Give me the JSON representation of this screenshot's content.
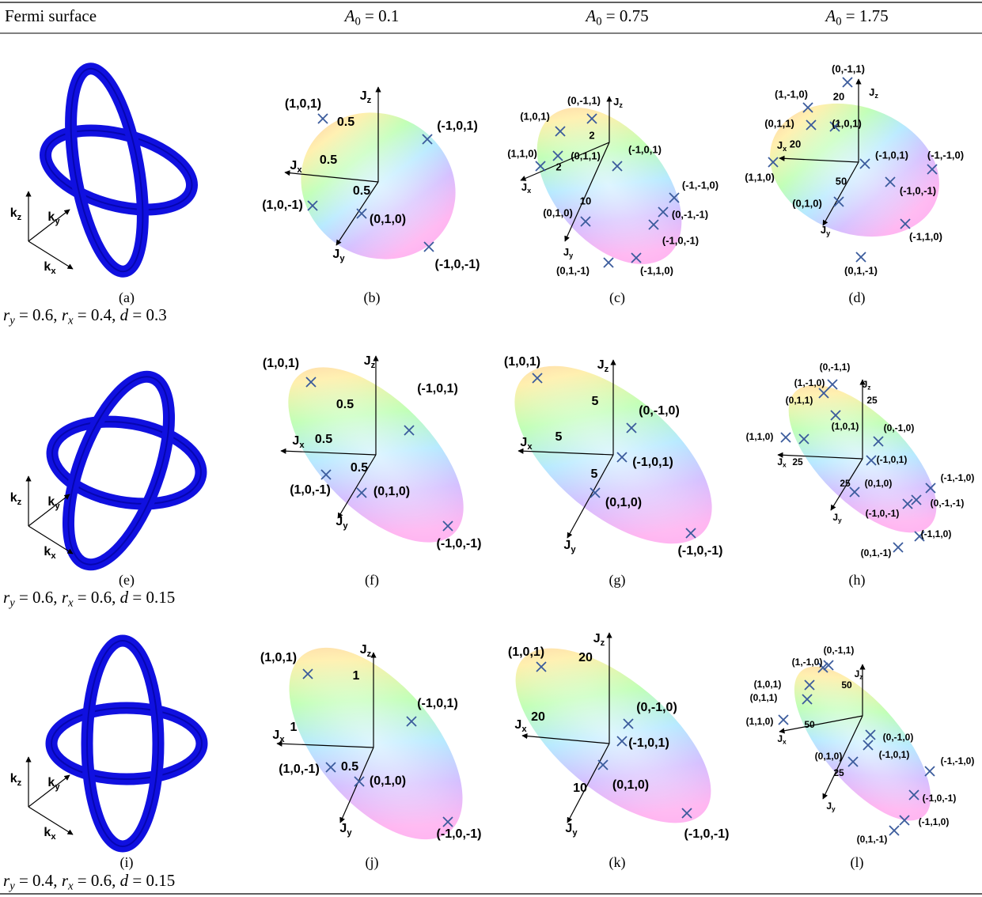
{
  "header": [
    [
      {
        "text": "Fermi surface"
      }
    ],
    [
      {
        "text": "A",
        "italic": true
      },
      {
        "text": "0",
        "sub": true
      },
      {
        "text": " = 0.1"
      }
    ],
    [
      {
        "text": "A",
        "italic": true
      },
      {
        "text": "0",
        "sub": true
      },
      {
        "text": " = 0.75"
      }
    ],
    [
      {
        "text": "A",
        "italic": true
      },
      {
        "text": "0",
        "sub": true
      },
      {
        "text": " = 1.75"
      }
    ]
  ],
  "rows": [
    {
      "params": [
        {
          "text": "r",
          "italic": true
        },
        {
          "text": "y",
          "sub": true,
          "italic": true
        },
        {
          "text": " = 0.6,  "
        },
        {
          "text": "r",
          "italic": true
        },
        {
          "text": "x",
          "sub": true,
          "italic": true
        },
        {
          "text": " = 0.4,  "
        },
        {
          "text": "d",
          "italic": true
        },
        {
          "text": " = 0.3"
        }
      ],
      "panels": [
        {
          "caption": "(a)",
          "axes": [
            [
              {
                "text": "k"
              },
              {
                "text": "z",
                "sub": true
              }
            ],
            [
              {
                "text": "k"
              },
              {
                "text": "y",
                "sub": true
              }
            ],
            [
              {
                "text": "k"
              },
              {
                "text": "x",
                "sub": true
              }
            ]
          ]
        },
        {
          "caption": "(b)",
          "axes": [
            [
              {
                "text": "J"
              },
              {
                "text": "z",
                "sub": true
              }
            ],
            [
              {
                "text": "J"
              },
              {
                "text": "x",
                "sub": true
              }
            ],
            [
              {
                "text": "J"
              },
              {
                "text": "y",
                "sub": true
              }
            ]
          ],
          "ticks": [
            "0.5",
            "0.5",
            "0.5"
          ],
          "points": [
            "(1,0,1)",
            "(-1,0,1)",
            "(1,0,-1)",
            "(0,1,0)",
            "(-1,0,-1)"
          ]
        },
        {
          "caption": "(c)",
          "axes": [
            [
              {
                "text": "J"
              },
              {
                "text": "z",
                "sub": true
              }
            ],
            [
              {
                "text": "J"
              },
              {
                "text": "x",
                "sub": true
              }
            ],
            [
              {
                "text": "J"
              },
              {
                "text": "y",
                "sub": true
              }
            ]
          ],
          "ticks": [
            "2",
            "2",
            "10"
          ],
          "points": [
            "(0,-1,1)",
            "(1,0,1)",
            "(-1,0,1)",
            "(1,1,0)",
            "(0,1,1)",
            "(-1,-1,0)",
            "(0,1,0)",
            "(0,-1,-1)",
            "(-1,0,-1)",
            "(0,1,-1)",
            "(-1,1,0)"
          ]
        },
        {
          "caption": "(d)",
          "axes": [
            [
              {
                "text": "J"
              },
              {
                "text": "z",
                "sub": true
              }
            ],
            [
              {
                "text": "J"
              },
              {
                "text": "x",
                "sub": true
              }
            ],
            [
              {
                "text": "J"
              },
              {
                "text": "y",
                "sub": true
              }
            ]
          ],
          "ticks": [
            "20",
            "20",
            "50"
          ],
          "points": [
            "(0,-1,1)",
            "(1,-1,0)",
            "(0,1,1)",
            "(1,0,1)",
            "(-1,0,1)",
            "(-1,-1,0)",
            "(1,1,0)",
            "(-1,0,-1)",
            "(0,1,0)",
            "(-1,1,0)",
            "(0,1,-1)"
          ]
        }
      ]
    },
    {
      "params": [
        {
          "text": "r",
          "italic": true
        },
        {
          "text": "y",
          "sub": true,
          "italic": true
        },
        {
          "text": " = 0.6,  "
        },
        {
          "text": "r",
          "italic": true
        },
        {
          "text": "x",
          "sub": true,
          "italic": true
        },
        {
          "text": " = 0.6,  "
        },
        {
          "text": "d",
          "italic": true
        },
        {
          "text": " = 0.15"
        }
      ],
      "panels": [
        {
          "caption": "(e)",
          "axes": [
            [
              {
                "text": "k"
              },
              {
                "text": "z",
                "sub": true
              }
            ],
            [
              {
                "text": "k"
              },
              {
                "text": "y",
                "sub": true
              }
            ],
            [
              {
                "text": "k"
              },
              {
                "text": "x",
                "sub": true
              }
            ]
          ]
        },
        {
          "caption": "(f)",
          "axes": [
            [
              {
                "text": "J"
              },
              {
                "text": "z",
                "sub": true
              }
            ],
            [
              {
                "text": "J"
              },
              {
                "text": "x",
                "sub": true
              }
            ],
            [
              {
                "text": "J"
              },
              {
                "text": "y",
                "sub": true
              }
            ]
          ],
          "ticks": [
            "0.5",
            "0.5",
            "0.5"
          ],
          "points": [
            "(1,0,1)",
            "(-1,0,1)",
            "(1,0,-1)",
            "(0,1,0)",
            "(-1,0,-1)"
          ]
        },
        {
          "caption": "(g)",
          "axes": [
            [
              {
                "text": "J"
              },
              {
                "text": "z",
                "sub": true
              }
            ],
            [
              {
                "text": "J"
              },
              {
                "text": "x",
                "sub": true
              }
            ],
            [
              {
                "text": "J"
              },
              {
                "text": "y",
                "sub": true
              }
            ]
          ],
          "ticks": [
            "5",
            "5",
            "5"
          ],
          "points": [
            "(1,0,1)",
            "(0,-1,0)",
            "(-1,0,1)",
            "(0,1,0)",
            "(-1,0,-1)"
          ]
        },
        {
          "caption": "(h)",
          "axes": [
            [
              {
                "text": "J"
              },
              {
                "text": "z",
                "sub": true
              }
            ],
            [
              {
                "text": "J"
              },
              {
                "text": "x",
                "sub": true
              }
            ],
            [
              {
                "text": "J"
              },
              {
                "text": "y",
                "sub": true
              }
            ]
          ],
          "ticks": [
            "25",
            "25",
            "25"
          ],
          "points": [
            "(0,-1,1)",
            "(1,-1,0)",
            "(0,1,1)",
            "(1,0,1)",
            "(0,-1,0)",
            "(1,1,0)",
            "(-1,0,1)",
            "(0,1,0)",
            "(-1,-1,0)",
            "(0,-1,-1)",
            "(-1,0,-1)",
            "(-1,1,0)",
            "(0,1,-1)"
          ]
        }
      ]
    },
    {
      "params": [
        {
          "text": "r",
          "italic": true
        },
        {
          "text": "y",
          "sub": true,
          "italic": true
        },
        {
          "text": " = 0.4,  "
        },
        {
          "text": "r",
          "italic": true
        },
        {
          "text": "x",
          "sub": true,
          "italic": true
        },
        {
          "text": " = 0.6,  "
        },
        {
          "text": "d",
          "italic": true
        },
        {
          "text": " = 0.15"
        }
      ],
      "panels": [
        {
          "caption": "(i)",
          "axes": [
            [
              {
                "text": "k"
              },
              {
                "text": "z",
                "sub": true
              }
            ],
            [
              {
                "text": "k"
              },
              {
                "text": "y",
                "sub": true
              }
            ],
            [
              {
                "text": "k"
              },
              {
                "text": "x",
                "sub": true
              }
            ]
          ]
        },
        {
          "caption": "(j)",
          "axes": [
            [
              {
                "text": "J"
              },
              {
                "text": "z",
                "sub": true
              }
            ],
            [
              {
                "text": "J"
              },
              {
                "text": "x",
                "sub": true
              }
            ],
            [
              {
                "text": "J"
              },
              {
                "text": "y",
                "sub": true
              }
            ]
          ],
          "ticks": [
            "1",
            "1",
            "0.5"
          ],
          "points": [
            "(1,0,1)",
            "(-1,0,1)",
            "(1,0,-1)",
            "(0,1,0)",
            "(-1,0,-1)"
          ]
        },
        {
          "caption": "(k)",
          "axes": [
            [
              {
                "text": "J"
              },
              {
                "text": "z",
                "sub": true
              }
            ],
            [
              {
                "text": "J"
              },
              {
                "text": "x",
                "sub": true
              }
            ],
            [
              {
                "text": "J"
              },
              {
                "text": "y",
                "sub": true
              }
            ]
          ],
          "ticks": [
            "20",
            "20",
            "10"
          ],
          "points": [
            "(1,0,1)",
            "(0,-1,0)",
            "(-1,0,1)",
            "(0,1,0)",
            "(-1,0,-1)"
          ]
        },
        {
          "caption": "(l)",
          "axes": [
            [
              {
                "text": "J"
              },
              {
                "text": "z",
                "sub": true
              }
            ],
            [
              {
                "text": "J"
              },
              {
                "text": "x",
                "sub": true
              }
            ],
            [
              {
                "text": "J"
              },
              {
                "text": "y",
                "sub": true
              }
            ]
          ],
          "ticks": [
            "50",
            "50",
            "25"
          ],
          "points": [
            "(0,-1,1)",
            "(1,-1,0)",
            "(1,0,1)",
            "(0,1,1)",
            "(1,1,0)",
            "(0,-1,0)",
            "(-1,0,1)",
            "(0,1,0)",
            "(-1,-1,0)",
            "(-1,0,-1)",
            "(-1,1,0)",
            "(0,1,-1)"
          ]
        }
      ]
    }
  ]
}
